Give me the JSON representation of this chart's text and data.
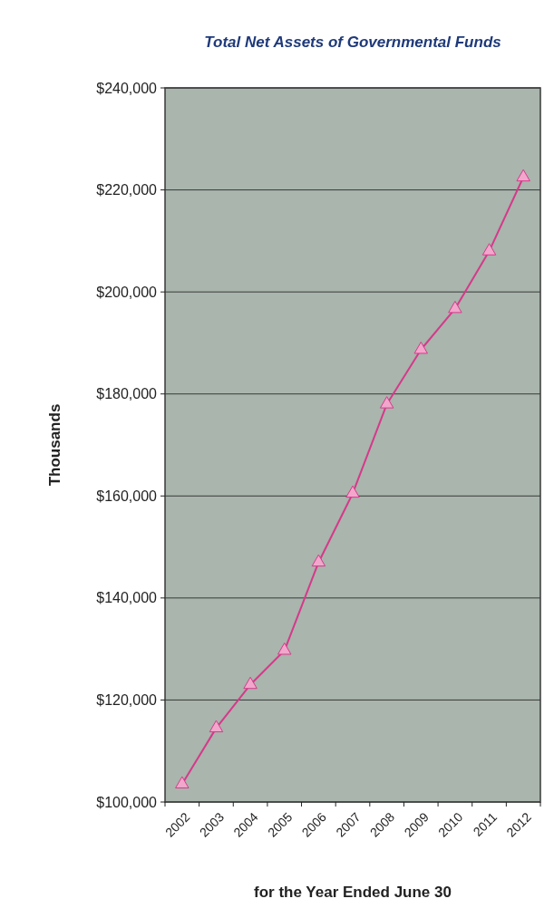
{
  "chart_data": {
    "type": "line",
    "title": "Total Net Assets of Governmental Funds",
    "xlabel": "for the Year Ended June 30",
    "ylabel": "Thousands",
    "categories": [
      "2002",
      "2003",
      "2004",
      "2005",
      "2006",
      "2007",
      "2008",
      "2009",
      "2010",
      "2011",
      "2012"
    ],
    "series": [
      {
        "color": "#d6398a",
        "values": [
          103500,
          114500,
          123000,
          129700,
          147000,
          160500,
          178000,
          188700,
          196700,
          208000,
          222500
        ]
      }
    ],
    "ylim": [
      100000,
      240000
    ],
    "yticks": [
      {
        "value": 100000,
        "label": "$100,000"
      },
      {
        "value": 120000,
        "label": "$120,000"
      },
      {
        "value": 140000,
        "label": "$140,000"
      },
      {
        "value": 160000,
        "label": "$160,000"
      },
      {
        "value": 180000,
        "label": "$180,000"
      },
      {
        "value": 200000,
        "label": "$200,000"
      },
      {
        "value": 220000,
        "label": "$220,000"
      },
      {
        "value": 240000,
        "label": "$240,000"
      }
    ],
    "grid": "y",
    "marker": "triangle",
    "line_style": "solid"
  }
}
